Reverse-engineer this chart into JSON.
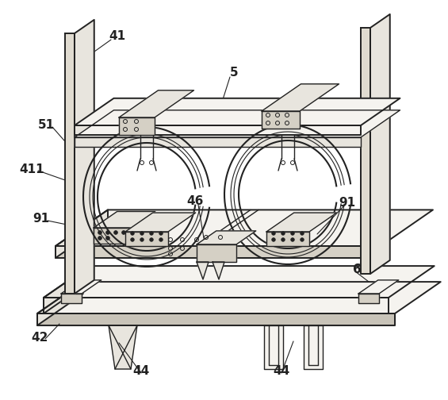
{
  "bg_color": "#ffffff",
  "line_color": "#222222",
  "lw": 1.0,
  "tlw": 1.4,
  "fs": 11,
  "fw": "bold",
  "shading": {
    "light": "#f5f3ef",
    "mid": "#e8e5de",
    "dark": "#d5d0c5",
    "darker": "#c8c3b8",
    "panel": "#e0dbd0",
    "ring_bg": "#ffffff"
  }
}
